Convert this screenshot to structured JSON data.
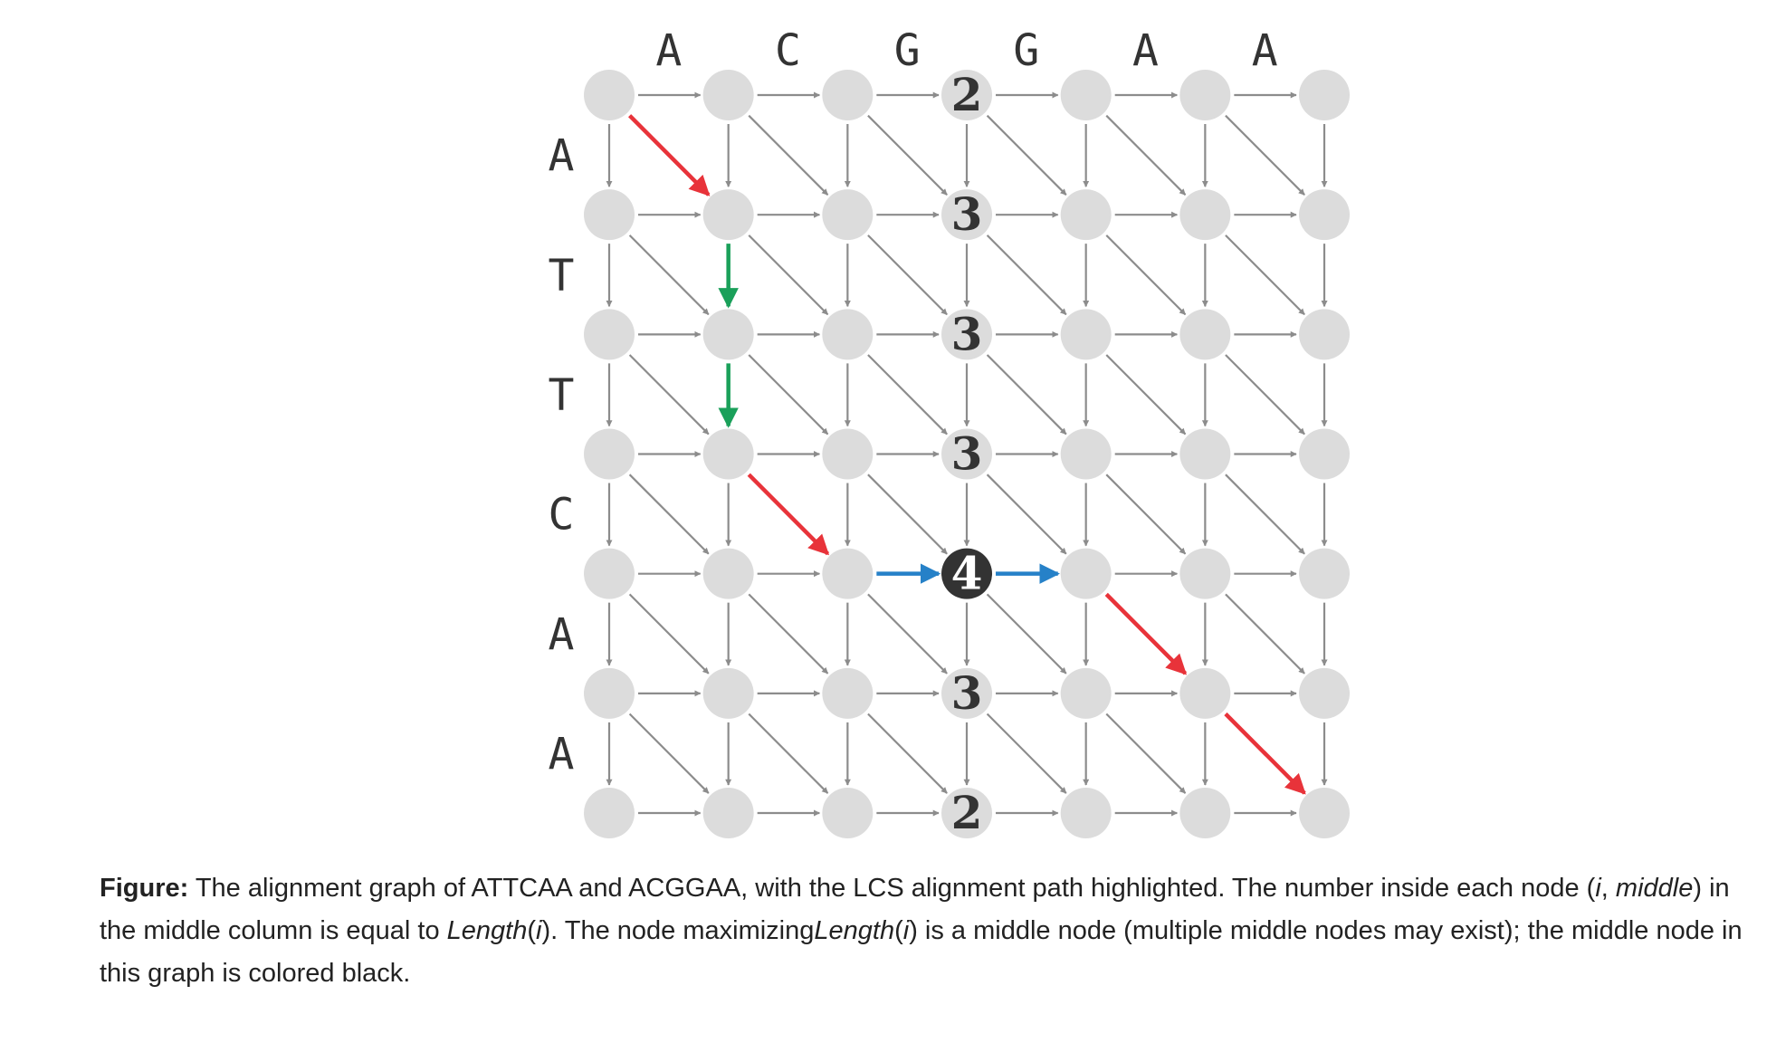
{
  "diagram": {
    "top_sequence": [
      "A",
      "C",
      "G",
      "G",
      "A",
      "A"
    ],
    "left_sequence": [
      "A",
      "T",
      "T",
      "C",
      "A",
      "A"
    ],
    "middle_column_index": 3,
    "middle_column_values": [
      "2",
      "3",
      "3",
      "3",
      "4",
      "3",
      "2"
    ],
    "middle_node_row": 4,
    "colors": {
      "node": "#dcdcdc",
      "edge": "#8c8c8c",
      "middle_node": "#333333",
      "path_diagonal": "#e8333a",
      "path_vertical": "#1aa05a",
      "path_horizontal": "#2681c8",
      "value_text": "#333333",
      "middle_value_text": "#ffffff"
    },
    "highlighted_path": [
      {
        "type": "diagonal",
        "from": [
          0,
          0
        ],
        "to": [
          1,
          1
        ],
        "color_key": "path_diagonal"
      },
      {
        "type": "down",
        "from": [
          1,
          1
        ],
        "to": [
          2,
          1
        ],
        "color_key": "path_vertical"
      },
      {
        "type": "down",
        "from": [
          2,
          1
        ],
        "to": [
          3,
          1
        ],
        "color_key": "path_vertical"
      },
      {
        "type": "diagonal",
        "from": [
          3,
          1
        ],
        "to": [
          4,
          2
        ],
        "color_key": "path_diagonal"
      },
      {
        "type": "right",
        "from": [
          4,
          2
        ],
        "to": [
          4,
          3
        ],
        "color_key": "path_horizontal"
      },
      {
        "type": "right",
        "from": [
          4,
          3
        ],
        "to": [
          4,
          4
        ],
        "color_key": "path_horizontal"
      },
      {
        "type": "diagonal",
        "from": [
          4,
          4
        ],
        "to": [
          5,
          5
        ],
        "color_key": "path_diagonal"
      },
      {
        "type": "diagonal",
        "from": [
          5,
          5
        ],
        "to": [
          6,
          6
        ],
        "color_key": "path_diagonal"
      }
    ]
  },
  "caption": {
    "label": "Figure:",
    "part1": " The alignment graph of ",
    "seq1": "ATTCAA",
    "part2": " and ",
    "seq2": "ACGGAA",
    "part3": ", with the LCS alignment path highlighted. The number inside each node (",
    "i": "i",
    "comma": ", ",
    "middle": "middle",
    "part4": ") in the middle column is equal to ",
    "length1": "Length",
    "paren_i1": "(",
    "i2": "i",
    "close1": ")",
    "part5": ". The node maximizing",
    "length2": "Length",
    "paren_i2": "(",
    "i3": "i",
    "close2": ")",
    "part6": " is a middle node (multiple middle nodes may exist); the middle node in this graph is colored black."
  }
}
